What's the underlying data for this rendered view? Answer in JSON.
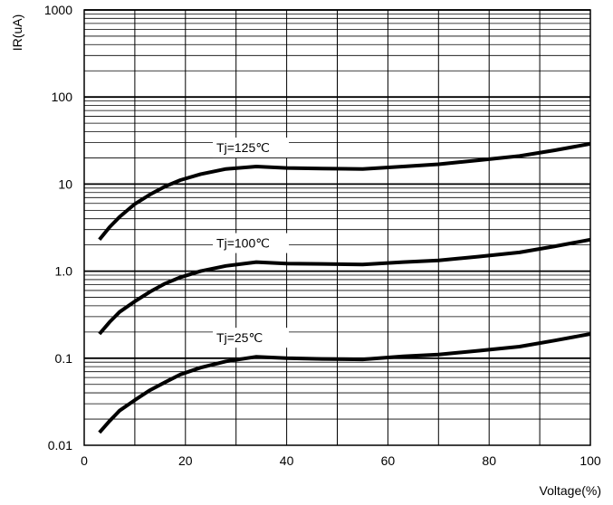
{
  "chart_data": {
    "type": "line",
    "title": "",
    "xlabel": "Voltage(%)",
    "ylabel": "IR(uA)",
    "xlim": [
      0,
      100
    ],
    "ylim": [
      0.01,
      1000
    ],
    "yscale": "log",
    "grid": true,
    "x_ticks": [
      0,
      20,
      40,
      60,
      80,
      100
    ],
    "x_tick_labels": [
      "0",
      "20",
      "40",
      "60",
      "80",
      "100"
    ],
    "y_ticks": [
      0.01,
      0.1,
      1,
      10,
      100,
      1000
    ],
    "y_tick_labels": [
      "0.01",
      "0.1",
      "1.0",
      "10",
      "100",
      "1000"
    ],
    "series": [
      {
        "name": "Tj=125℃",
        "x": [
          3,
          5,
          7,
          10,
          13,
          16,
          19,
          23,
          28,
          34,
          40,
          47,
          55,
          63,
          70,
          78,
          86,
          93,
          100
        ],
        "y": [
          2.3,
          3.2,
          4.2,
          5.9,
          7.6,
          9.4,
          11.1,
          13.0,
          14.9,
          15.9,
          15.3,
          15.1,
          14.9,
          15.9,
          16.9,
          18.8,
          21.0,
          24.5,
          29.0
        ]
      },
      {
        "name": "Tj=100℃",
        "x": [
          3,
          5,
          7,
          10,
          13,
          16,
          19,
          23,
          28,
          34,
          40,
          47,
          55,
          63,
          70,
          78,
          86,
          93,
          100
        ],
        "y": [
          0.19,
          0.26,
          0.34,
          0.45,
          0.58,
          0.72,
          0.85,
          1.0,
          1.15,
          1.27,
          1.22,
          1.21,
          1.19,
          1.27,
          1.33,
          1.47,
          1.64,
          1.93,
          2.3
        ]
      },
      {
        "name": "Tj=25℃",
        "x": [
          3,
          5,
          7,
          10,
          13,
          16,
          19,
          23,
          28,
          34,
          40,
          47,
          55,
          63,
          70,
          78,
          86,
          93,
          100
        ],
        "y": [
          0.014,
          0.019,
          0.025,
          0.033,
          0.043,
          0.053,
          0.065,
          0.078,
          0.092,
          0.104,
          0.1,
          0.098,
          0.097,
          0.105,
          0.11,
          0.122,
          0.136,
          0.16,
          0.19
        ]
      }
    ]
  }
}
